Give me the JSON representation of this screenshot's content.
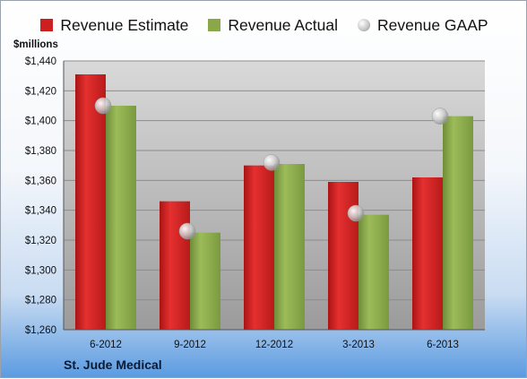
{
  "chart_data": {
    "type": "bar",
    "title": "",
    "ylabel": "$millions",
    "xlabel": "",
    "categories": [
      "6-2012",
      "9-2012",
      "12-2012",
      "3-2013",
      "6-2013"
    ],
    "series": [
      {
        "name": "Revenue Estimate",
        "kind": "bar",
        "color": "#cc1f1f",
        "values": [
          1431,
          1346,
          1370,
          1359,
          1362
        ]
      },
      {
        "name": "Revenue Actual",
        "kind": "bar",
        "color": "#8aa84a",
        "values": [
          1410,
          1325,
          1371,
          1337,
          1403
        ]
      },
      {
        "name": "Revenue GAAP",
        "kind": "marker",
        "color": "#bdbdbd",
        "values": [
          1410,
          1326,
          1372,
          1338,
          1403
        ]
      }
    ],
    "ylim": [
      1260,
      1440
    ],
    "yticks": [
      "$1,260",
      "$1,280",
      "$1,300",
      "$1,320",
      "$1,340",
      "$1,360",
      "$1,380",
      "$1,400",
      "$1,420",
      "$1,440"
    ],
    "grid": true,
    "legend_position": "top"
  },
  "footer": {
    "company": "St. Jude Medical"
  }
}
